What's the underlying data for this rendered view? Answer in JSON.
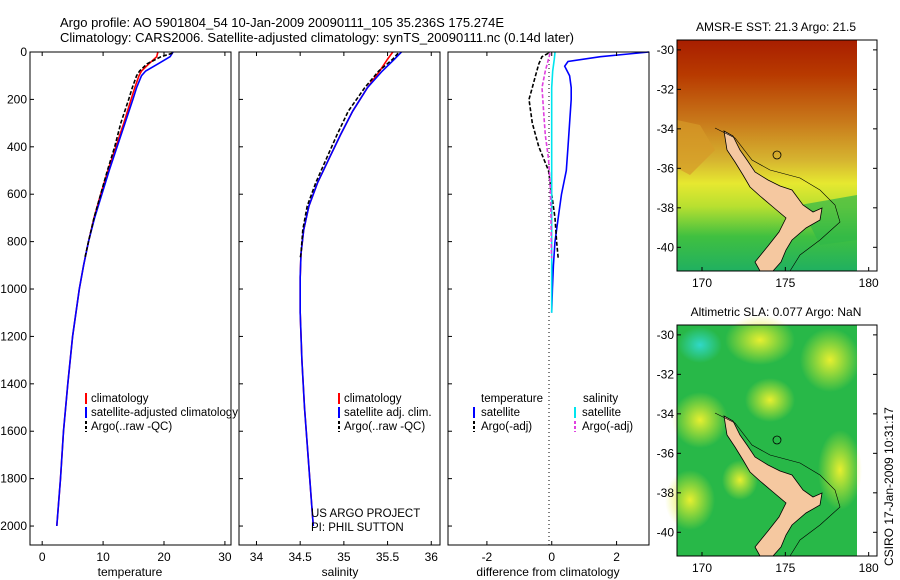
{
  "header": {
    "line1": "Argo profile: AO 5901804_54 10-Jan-2009 20090111_105 35.236S 175.274E",
    "line2": "Climatology: CARS2006. Satellite-adjusted climatology: synTS_20090111.nc (0.14d later)"
  },
  "colors": {
    "climatology": "#ff0000",
    "satellite": "#0000ff",
    "argo": "#000000",
    "salinity_satellite": "#00e5ee",
    "salinity_argo": "#e040e0",
    "land": "#f5c8a0"
  },
  "chart_data": [
    {
      "type": "line",
      "id": "temperature-profile",
      "xlabel": "temperature",
      "ylabel": "",
      "xlim": [
        -2,
        31
      ],
      "ylim": [
        2080,
        0
      ],
      "xticks": [
        0,
        10,
        20,
        30
      ],
      "yticks": [
        0,
        200,
        400,
        600,
        800,
        1000,
        1200,
        1400,
        1600,
        1800,
        2000
      ],
      "legend": {
        "placement": "lower-right",
        "entries": [
          "climatology",
          "satellite-adjusted climatology",
          "Argo(..raw -QC)"
        ]
      },
      "series": [
        {
          "name": "climatology",
          "color": "climatology",
          "depth": [
            0,
            20,
            50,
            80,
            100,
            150,
            200,
            300,
            400,
            500,
            600,
            700,
            800,
            900,
            1000,
            1200,
            1400,
            1600,
            1800,
            2000
          ],
          "values": [
            19.0,
            18.8,
            17.5,
            16.3,
            15.9,
            15.2,
            14.6,
            13.4,
            12.1,
            10.8,
            9.6,
            8.5,
            7.6,
            6.8,
            6.1,
            5.0,
            4.2,
            3.5,
            3.0,
            2.4
          ]
        },
        {
          "name": "satellite-adjusted climatology",
          "color": "satellite",
          "depth": [
            0,
            20,
            50,
            80,
            100,
            150,
            200,
            300,
            400,
            500,
            600,
            700,
            800,
            900,
            1000,
            1200,
            1400,
            1600,
            1800,
            2000
          ],
          "values": [
            21.5,
            21.0,
            19.0,
            17.0,
            16.3,
            15.5,
            14.9,
            13.6,
            12.3,
            11.0,
            9.8,
            8.6,
            7.6,
            6.8,
            6.1,
            5.0,
            4.2,
            3.5,
            3.0,
            2.4
          ]
        },
        {
          "name": "Argo(..raw -QC)",
          "color": "argo",
          "dashed": true,
          "depth": [
            5,
            20,
            50,
            80,
            100,
            150,
            200,
            300,
            400,
            500,
            600,
            700,
            800,
            870
          ],
          "values": [
            21.4,
            19.5,
            17.2,
            16.0,
            15.5,
            14.8,
            14.2,
            12.9,
            11.9,
            10.7,
            9.6,
            8.5,
            7.6,
            7.0
          ]
        }
      ]
    },
    {
      "type": "line",
      "id": "salinity-profile",
      "xlabel": "salinity",
      "ylabel": "",
      "xlim": [
        33.8,
        36.1
      ],
      "ylim": [
        2080,
        0
      ],
      "xticks": [
        34,
        34.5,
        35,
        35.5,
        36
      ],
      "legend": {
        "placement": "lower-right",
        "entries": [
          "climatology",
          "satellite adj. clim.",
          "Argo(..raw -QC)"
        ]
      },
      "annotation": {
        "line1": "US ARGO PROJECT",
        "line2": "PI: PHIL SUTTON"
      },
      "series": [
        {
          "name": "climatology",
          "color": "climatology",
          "depth": [
            0,
            30,
            80,
            150,
            250,
            350,
            450,
            550,
            650,
            750,
            850,
            950,
            1100,
            1300,
            1500,
            1700,
            1900,
            2000
          ],
          "values": [
            35.56,
            35.5,
            35.41,
            35.27,
            35.1,
            34.96,
            34.83,
            34.7,
            34.6,
            34.54,
            34.51,
            34.5,
            34.5,
            34.52,
            34.55,
            34.59,
            34.63,
            34.65
          ]
        },
        {
          "name": "satellite adj. clim.",
          "color": "satellite",
          "depth": [
            0,
            30,
            80,
            150,
            250,
            350,
            450,
            550,
            650,
            750,
            850,
            950,
            1100,
            1300,
            1500,
            1700,
            1900,
            2000
          ],
          "values": [
            35.66,
            35.58,
            35.44,
            35.27,
            35.1,
            34.96,
            34.83,
            34.7,
            34.6,
            34.54,
            34.51,
            34.5,
            34.5,
            34.52,
            34.55,
            34.59,
            34.63,
            34.65
          ]
        },
        {
          "name": "Argo(..raw -QC)",
          "color": "argo",
          "dashed": true,
          "depth": [
            5,
            30,
            80,
            150,
            250,
            350,
            450,
            550,
            650,
            750,
            850,
            870
          ],
          "values": [
            35.62,
            35.56,
            35.4,
            35.24,
            35.05,
            34.92,
            34.8,
            34.68,
            34.58,
            34.53,
            34.51,
            34.5
          ]
        }
      ]
    },
    {
      "type": "line",
      "id": "difference-profile",
      "xlabel": "difference from climatology",
      "ylabel": "",
      "xlim": [
        -3.2,
        3
      ],
      "ylim": [
        2080,
        0
      ],
      "xticks": [
        -2,
        0,
        2
      ],
      "legend": {
        "placement": "lower-right",
        "headers": [
          "temperature",
          "salinity"
        ],
        "entries": [
          "satellite",
          "Argo(-adj)",
          "satellite",
          "Argo(-adj)"
        ]
      },
      "series": [
        {
          "name": "temperature satellite",
          "color": "satellite",
          "depth": [
            0,
            20,
            40,
            60,
            100,
            150,
            200,
            300,
            400,
            500,
            600,
            700,
            800,
            900,
            1000,
            1100
          ],
          "values": [
            3.0,
            1.5,
            0.5,
            0.4,
            0.55,
            0.6,
            0.6,
            0.55,
            0.5,
            0.45,
            0.3,
            0.2,
            0.1,
            0.05,
            0.02,
            0.0
          ]
        },
        {
          "name": "temperature Argo(-adj)",
          "color": "argo",
          "dashed": true,
          "depth": [
            5,
            20,
            50,
            100,
            150,
            200,
            300,
            400,
            500,
            600,
            700,
            800,
            870
          ],
          "values": [
            -0.1,
            -0.3,
            -0.4,
            -0.5,
            -0.6,
            -0.7,
            -0.6,
            -0.4,
            -0.1,
            0.0,
            0.1,
            0.15,
            0.2
          ]
        },
        {
          "name": "salinity satellite",
          "color": "salinity_satellite",
          "depth": [
            0,
            30,
            80,
            150,
            250,
            400,
            600,
            800,
            1000,
            1100
          ],
          "values": [
            0.1,
            0.08,
            0.03,
            0.0,
            0.0,
            0.0,
            0.0,
            0.0,
            0.0,
            0.0
          ]
        },
        {
          "name": "salinity Argo(-adj)",
          "color": "salinity_argo",
          "dashed": true,
          "depth": [
            5,
            30,
            80,
            150,
            250,
            350,
            450,
            550,
            650,
            750,
            850,
            870
          ],
          "values": [
            -0.05,
            -0.1,
            -0.2,
            -0.3,
            -0.25,
            -0.2,
            -0.1,
            -0.05,
            -0.03,
            -0.02,
            -0.01,
            0.0
          ]
        }
      ]
    },
    {
      "type": "heatmap",
      "id": "sst-map",
      "title": "AMSR-E SST: 21.3 Argo: 21.5",
      "xlim": [
        168.5,
        180.5
      ],
      "ylim": [
        -41.2,
        -29.5
      ],
      "xticks": [
        170,
        175,
        180
      ],
      "yticks": [
        -30,
        -32,
        -34,
        -36,
        -38,
        -40
      ]
    },
    {
      "type": "heatmap",
      "id": "sla-map",
      "title": "Altimetric SLA: 0.077 Argo: NaN",
      "xlim": [
        168.5,
        180.5
      ],
      "ylim": [
        -41.2,
        -29.5
      ],
      "xticks": [
        170,
        175,
        180
      ],
      "yticks": [
        -30,
        -32,
        -34,
        -36,
        -38,
        -40
      ]
    }
  ],
  "footer": {
    "stamp": "CSIRO 17-Jan-2009 10:31:17"
  }
}
